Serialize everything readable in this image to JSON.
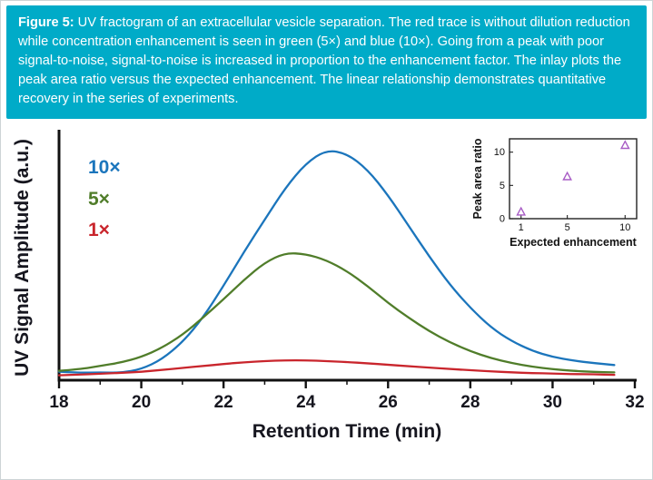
{
  "caption": {
    "prefix": "Figure 5:",
    "text": " UV fractogram of an extracellular vesicle separation. The red trace is without dilution reduction while concentration enhancement is seen in green (5×) and blue (10×). Going from a peak with poor signal-to-noise, signal-to-noise is increased in proportion to the enhancement factor. The inlay plots the peak area ratio versus the expected enhancement. The linear relationship demonstrates quantitative recovery in the series of experiments.",
    "background_color": "#00abc8",
    "text_color": "#ffffff"
  },
  "chart_data": [
    {
      "type": "line",
      "title": "",
      "xlabel": "Retention Time (min)",
      "ylabel": "UV Signal Amplitude (a.u.)",
      "xlim": [
        18,
        32
      ],
      "ylim": [
        0,
        10
      ],
      "xticks": [
        18,
        20,
        22,
        24,
        26,
        28,
        30,
        32
      ],
      "xminorticks": [
        19,
        21,
        23,
        25,
        27,
        29,
        31
      ],
      "grid": false,
      "legend_position": "top-left",
      "x": [
        18,
        18.5,
        19,
        19.5,
        20,
        20.5,
        21,
        21.5,
        22,
        22.5,
        23,
        23.5,
        24,
        24.5,
        25,
        25.5,
        26,
        26.5,
        27,
        27.5,
        28,
        28.5,
        29,
        29.5,
        30,
        30.5,
        31,
        31.5
      ],
      "series": [
        {
          "name": "10×",
          "color": "#1b75bc",
          "values": [
            0.35,
            0.3,
            0.32,
            0.3,
            0.45,
            0.85,
            1.55,
            2.55,
            3.85,
            5.25,
            6.55,
            7.85,
            8.85,
            9.4,
            9.25,
            8.6,
            7.55,
            6.3,
            5.05,
            3.9,
            2.95,
            2.15,
            1.6,
            1.2,
            0.95,
            0.8,
            0.7,
            0.62
          ]
        },
        {
          "name": "5×",
          "color": "#507d2a",
          "values": [
            0.38,
            0.45,
            0.58,
            0.72,
            0.95,
            1.32,
            1.85,
            2.55,
            3.3,
            4.1,
            4.8,
            5.2,
            5.15,
            4.9,
            4.45,
            3.85,
            3.15,
            2.55,
            2.0,
            1.55,
            1.18,
            0.9,
            0.7,
            0.55,
            0.45,
            0.38,
            0.34,
            0.32
          ]
        },
        {
          "name": "1×",
          "color": "#c9252c",
          "values": [
            0.2,
            0.23,
            0.26,
            0.3,
            0.34,
            0.42,
            0.5,
            0.58,
            0.66,
            0.73,
            0.78,
            0.81,
            0.81,
            0.78,
            0.74,
            0.69,
            0.63,
            0.57,
            0.51,
            0.46,
            0.41,
            0.36,
            0.32,
            0.29,
            0.27,
            0.25,
            0.24,
            0.22
          ]
        }
      ]
    },
    {
      "type": "scatter",
      "xlabel": "Expected enhancement",
      "ylabel": "Peak area ratio",
      "xlim": [
        0,
        11
      ],
      "ylim": [
        0,
        12
      ],
      "xticks": [
        1,
        5,
        10
      ],
      "yticks": [
        0,
        5,
        10
      ],
      "marker": "open-triangle",
      "marker_color": "#a85cc5",
      "points": [
        {
          "x": 1,
          "y": 1.0
        },
        {
          "x": 5,
          "y": 6.3
        },
        {
          "x": 10,
          "y": 11.0
        }
      ]
    }
  ]
}
